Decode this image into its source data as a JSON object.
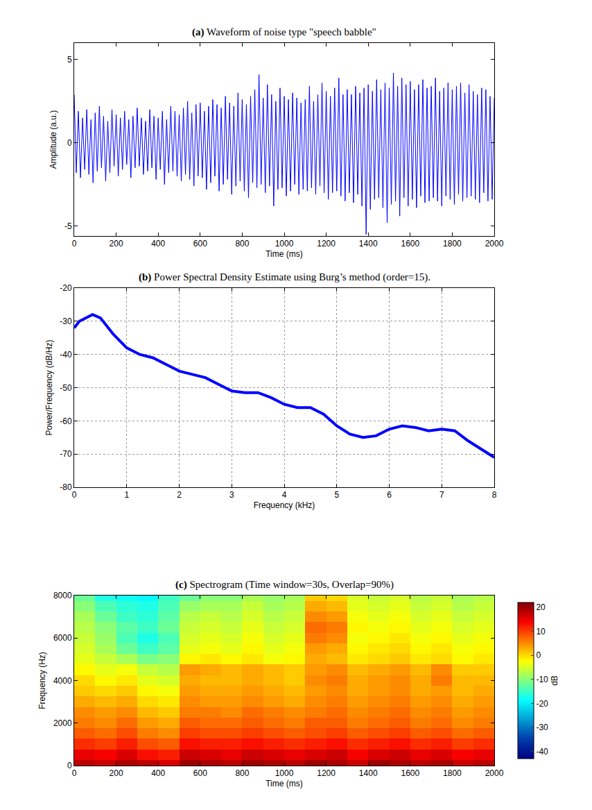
{
  "chart_data": [
    {
      "type": "line",
      "label": "(a)",
      "title": "Waveform of noise type \"speech babble\"",
      "x_label": "Time (ms)",
      "y_label": "Amplitude (a.u.)",
      "color": "#0000ff",
      "grid": false,
      "xlim": [
        0,
        2000
      ],
      "ylim": [
        -5.6,
        6
      ],
      "xticks": [
        0,
        200,
        400,
        600,
        800,
        1000,
        1200,
        1400,
        1600,
        1800,
        2000
      ],
      "yticks": [
        -5,
        0,
        5
      ],
      "x": [
        0,
        10,
        20,
        30,
        40,
        50,
        60,
        70,
        80,
        90,
        100,
        110,
        120,
        130,
        140,
        150,
        160,
        170,
        180,
        190,
        200,
        210,
        220,
        230,
        240,
        250,
        260,
        270,
        280,
        290,
        300,
        310,
        320,
        330,
        340,
        350,
        360,
        370,
        380,
        390,
        400,
        410,
        420,
        430,
        440,
        450,
        460,
        470,
        480,
        490,
        500,
        510,
        520,
        530,
        540,
        550,
        560,
        570,
        580,
        590,
        600,
        610,
        620,
        630,
        640,
        650,
        660,
        670,
        680,
        690,
        700,
        710,
        720,
        730,
        740,
        750,
        760,
        770,
        780,
        790,
        800,
        810,
        820,
        830,
        840,
        850,
        860,
        870,
        880,
        890,
        900,
        910,
        920,
        930,
        940,
        950,
        960,
        970,
        980,
        990,
        1000,
        1010,
        1020,
        1030,
        1040,
        1050,
        1060,
        1070,
        1080,
        1090,
        1100,
        1110,
        1120,
        1130,
        1140,
        1150,
        1160,
        1170,
        1180,
        1190,
        1200,
        1210,
        1220,
        1230,
        1240,
        1250,
        1260,
        1270,
        1280,
        1290,
        1300,
        1310,
        1320,
        1330,
        1340,
        1350,
        1360,
        1370,
        1380,
        1390,
        1400,
        1410,
        1420,
        1430,
        1440,
        1450,
        1460,
        1470,
        1480,
        1490,
        1500,
        1510,
        1520,
        1530,
        1540,
        1550,
        1560,
        1570,
        1580,
        1590,
        1600,
        1610,
        1620,
        1630,
        1640,
        1650,
        1660,
        1670,
        1680,
        1690,
        1700,
        1710,
        1720,
        1730,
        1740,
        1750,
        1760,
        1770,
        1780,
        1790,
        1800,
        1810,
        1820,
        1830,
        1840,
        1850,
        1860,
        1870,
        1880,
        1890,
        1900,
        1910,
        1920,
        1930,
        1940,
        1950,
        1960,
        1970,
        1980,
        1990,
        2000
      ],
      "values": [
        2.9,
        -1.8,
        1.9,
        -2.1,
        1.5,
        -1.6,
        2.0,
        -1.9,
        1.4,
        -2.4,
        1.8,
        -1.7,
        2.2,
        -1.5,
        1.6,
        -2.3,
        1.3,
        -1.8,
        2.0,
        -1.4,
        1.7,
        -2.0,
        1.5,
        -1.6,
        1.9,
        -1.3,
        1.4,
        -2.1,
        1.6,
        -1.5,
        2.1,
        -1.4,
        1.5,
        -1.9,
        1.3,
        -1.7,
        2.0,
        -1.5,
        1.6,
        -2.2,
        1.5,
        -1.6,
        1.9,
        -2.5,
        1.4,
        -1.8,
        2.2,
        -1.7,
        1.9,
        -2.0,
        1.7,
        -2.3,
        2.1,
        -1.9,
        2.5,
        -2.2,
        1.8,
        -2.6,
        2.3,
        -2.0,
        2.4,
        -2.1,
        1.9,
        -2.8,
        2.2,
        -2.4,
        2.6,
        -2.0,
        2.3,
        -2.9,
        2.1,
        -2.5,
        2.8,
        -2.2,
        2.4,
        -3.1,
        2.2,
        -2.6,
        3.0,
        -2.3,
        2.6,
        -2.9,
        2.3,
        -3.3,
        2.8,
        -2.4,
        3.2,
        -2.7,
        4.1,
        -2.5,
        2.7,
        -3.0,
        3.5,
        -2.6,
        2.9,
        -3.8,
        2.5,
        -2.8,
        3.3,
        -2.7,
        2.8,
        -3.2,
        2.6,
        -2.9,
        3.0,
        -2.5,
        2.7,
        -3.1,
        2.4,
        -2.8,
        2.6,
        -2.9,
        3.4,
        -2.7,
        2.5,
        -3.1,
        2.9,
        -2.6,
        3.6,
        -3.0,
        3.1,
        -3.4,
        2.8,
        -3.0,
        3.3,
        -2.9,
        3.9,
        -3.2,
        2.9,
        -3.5,
        3.2,
        -3.0,
        2.9,
        -3.6,
        3.4,
        -3.1,
        3.0,
        -3.8,
        3.3,
        -5.5,
        3.5,
        -4.0,
        3.1,
        -3.4,
        3.8,
        -3.3,
        3.2,
        -3.9,
        3.6,
        -4.8,
        3.3,
        -3.7,
        4.2,
        -3.5,
        3.4,
        -4.4,
        3.9,
        -3.3,
        3.5,
        -3.8,
        3.7,
        -3.4,
        3.2,
        -3.9,
        3.5,
        -3.2,
        3.8,
        -3.6,
        3.3,
        -3.5,
        3.4,
        -3.3,
        3.9,
        -3.5,
        3.1,
        -3.8,
        3.3,
        -3.2,
        3.6,
        -3.4,
        3.2,
        -3.7,
        3.4,
        -3.1,
        3.6,
        -3.5,
        3.0,
        -3.3,
        3.5,
        -3.2,
        3.1,
        -3.4,
        2.9,
        -3.6,
        3.3,
        -3.0,
        3.2,
        -3.5,
        2.8,
        -3.4,
        2.7
      ]
    },
    {
      "type": "line",
      "label": "(b)",
      "title": "Power Spectral Density Estimate using Burg’s method (order=15).",
      "x_label": "Frequency (kHz)",
      "y_label": "Power/Frequency (dB/Hz)",
      "color": "#0000ff",
      "grid": true,
      "xlim": [
        0,
        8
      ],
      "ylim": [
        -80,
        -20
      ],
      "xticks": [
        0,
        1,
        2,
        3,
        4,
        5,
        6,
        7,
        8
      ],
      "yticks": [
        -80,
        -70,
        -60,
        -50,
        -40,
        -30,
        -20
      ],
      "x": [
        0,
        0.1,
        0.35,
        0.5,
        0.75,
        1,
        1.25,
        1.5,
        1.75,
        2,
        2.25,
        2.5,
        2.75,
        3,
        3.25,
        3.5,
        3.75,
        4,
        4.25,
        4.5,
        4.75,
        5,
        5.25,
        5.5,
        5.75,
        6,
        6.25,
        6.5,
        6.75,
        7,
        7.25,
        7.5,
        7.75,
        8
      ],
      "values": [
        -32,
        -30,
        -28,
        -29,
        -34,
        -38,
        -40,
        -41,
        -43,
        -45,
        -46,
        -47,
        -49,
        -51,
        -51.5,
        -51.5,
        -53,
        -55,
        -56,
        -56,
        -58,
        -61.5,
        -64,
        -65,
        -64.5,
        -62.5,
        -61.5,
        -62,
        -63,
        -62.5,
        -63,
        -66,
        -68.5,
        -71
      ]
    },
    {
      "type": "heatmap",
      "label": "(c)",
      "title": "Spectrogram (Time window=30s, Overlap=90%)",
      "x_label": "Time (ms)",
      "y_label": "Frequency (Hz)",
      "color": "jet",
      "grid": false,
      "xlim": [
        0,
        2000
      ],
      "ylim": [
        0,
        8000
      ],
      "xticks": [
        0,
        200,
        400,
        600,
        800,
        1000,
        1200,
        1400,
        1600,
        1800,
        2000
      ],
      "yticks": [
        0,
        2000,
        4000,
        6000,
        8000
      ],
      "x": [
        50,
        150,
        250,
        350,
        450,
        550,
        650,
        750,
        850,
        950,
        1050,
        1150,
        1250,
        1350,
        1450,
        1550,
        1650,
        1750,
        1850,
        1950
      ],
      "y": [
        0,
        500,
        1000,
        1500,
        2000,
        2500,
        3000,
        3500,
        4000,
        4500,
        5000,
        5500,
        6000,
        6500,
        7000,
        7500,
        8000
      ],
      "cells": [
        [
          18,
          17,
          19,
          18,
          16,
          20,
          19,
          18,
          20,
          19,
          18,
          20,
          19,
          17,
          20,
          19,
          18,
          19,
          17,
          18
        ],
        [
          15,
          14,
          16,
          13,
          12,
          17,
          16,
          15,
          17,
          16,
          15,
          16,
          17,
          14,
          16,
          17,
          15,
          16,
          14,
          15
        ],
        [
          11,
          10,
          12,
          9,
          8,
          13,
          12,
          12,
          13,
          12,
          11,
          12,
          13,
          11,
          12,
          13,
          11,
          12,
          10,
          11
        ],
        [
          8,
          7,
          9,
          6,
          5,
          10,
          9,
          9,
          10,
          9,
          8,
          9,
          10,
          8,
          9,
          10,
          8,
          9,
          7,
          8
        ],
        [
          6,
          5,
          7,
          4,
          3,
          8,
          7,
          7,
          8,
          7,
          6,
          8,
          8,
          6,
          7,
          8,
          6,
          7,
          5,
          6
        ],
        [
          5,
          4,
          5,
          2,
          1,
          6,
          6,
          5,
          7,
          6,
          5,
          6,
          7,
          5,
          6,
          7,
          5,
          6,
          4,
          5
        ],
        [
          3,
          2,
          3,
          0,
          -1,
          5,
          4,
          4,
          5,
          4,
          3,
          5,
          6,
          4,
          5,
          6,
          4,
          5,
          3,
          4
        ],
        [
          1,
          0,
          1,
          -2,
          -3,
          4,
          3,
          3,
          4,
          3,
          2,
          4,
          5,
          3,
          4,
          5,
          3,
          4,
          2,
          3
        ],
        [
          0,
          -2,
          -1,
          -4,
          -5,
          3,
          2,
          2,
          3,
          2,
          1,
          5,
          6,
          3,
          4,
          5,
          3,
          6,
          2,
          2
        ],
        [
          -2,
          -4,
          -3,
          -6,
          -7,
          4,
          3,
          2,
          3,
          2,
          1,
          4,
          5,
          2,
          3,
          4,
          2,
          5,
          1,
          1
        ],
        [
          -4,
          -6,
          -8,
          -11,
          -10,
          -2,
          -1,
          -2,
          -1,
          -3,
          -2,
          3,
          2,
          -1,
          0,
          1,
          -1,
          0,
          -2,
          -1
        ],
        [
          -5,
          -8,
          -12,
          -15,
          -13,
          -4,
          -3,
          -4,
          -2,
          -4,
          -3,
          4,
          3,
          -2,
          -1,
          0,
          -2,
          -1,
          -3,
          -2
        ],
        [
          -6,
          -9,
          -14,
          -17,
          -14,
          -5,
          -4,
          -5,
          -3,
          -5,
          -4,
          6,
          5,
          -3,
          -2,
          -1,
          -3,
          -2,
          -4,
          -3
        ],
        [
          -7,
          -10,
          -13,
          -15,
          -12,
          -6,
          -5,
          -6,
          -4,
          -6,
          -5,
          7,
          6,
          -2,
          -3,
          -2,
          -4,
          -3,
          -5,
          -4
        ],
        [
          -8,
          -12,
          -15,
          -16,
          -13,
          -7,
          -6,
          -7,
          -5,
          -7,
          -6,
          5,
          4,
          -3,
          -4,
          -3,
          -5,
          -4,
          -6,
          -5
        ],
        [
          -10,
          -14,
          -16,
          -17,
          -14,
          -9,
          -8,
          -8,
          -6,
          -8,
          -7,
          3,
          2,
          -4,
          -5,
          -4,
          -6,
          -5,
          -7,
          -6
        ],
        [
          -12,
          -17,
          -18,
          -19,
          -15,
          -12,
          -10,
          -10,
          -8,
          -9,
          -8,
          1,
          0,
          -5,
          -6,
          -5,
          -7,
          -6,
          -8,
          -7
        ]
      ],
      "colorbar_label": "dB",
      "colorbar_range": [
        -43,
        22
      ],
      "colorbar_ticks": [
        -40,
        -30,
        -20,
        -10,
        0,
        10,
        20
      ]
    }
  ]
}
